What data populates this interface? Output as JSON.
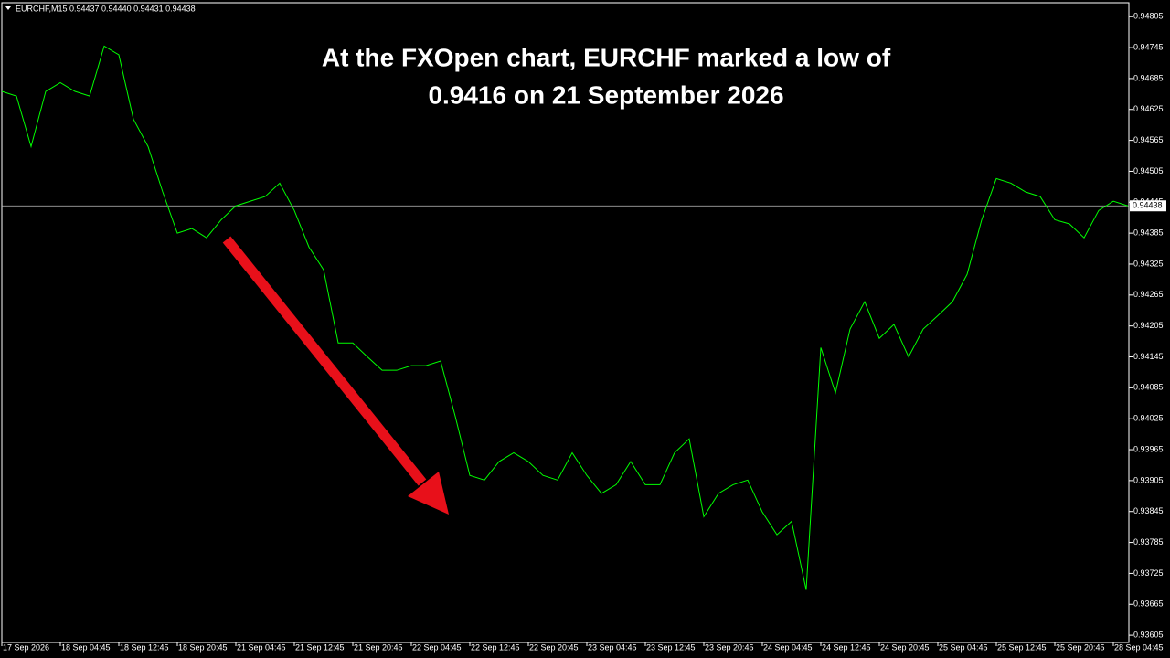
{
  "chart_data": {
    "type": "line",
    "header": "EURCHF,M15  0.94437 0.94440 0.94431 0.94438",
    "annotation": [
      "At the FXOpen chart, EURCHF marked a low of",
      "0.9416 on 21 September 2026"
    ],
    "categories": [
      "17 Sep 2026",
      null,
      null,
      null,
      "18 Sep 04:45",
      null,
      null,
      null,
      "18 Sep 12:45",
      null,
      null,
      null,
      "18 Sep 20:45",
      null,
      null,
      null,
      "21 Sep 04:45",
      null,
      null,
      null,
      "21 Sep 12:45",
      null,
      null,
      null,
      "21 Sep 20:45",
      null,
      null,
      null,
      "22 Sep 04:45",
      null,
      null,
      null,
      "22 Sep 12:45",
      null,
      null,
      null,
      "22 Sep 20:45",
      null,
      null,
      null,
      "23 Sep 04:45",
      null,
      null,
      null,
      "23 Sep 12:45",
      null,
      null,
      null,
      "23 Sep 20:45",
      null,
      null,
      null,
      "24 Sep 04:45",
      null,
      null,
      null,
      "24 Sep 12:45",
      null,
      null,
      null,
      "24 Sep 20:45",
      null,
      null,
      null,
      "25 Sep 04:45",
      null,
      null,
      null,
      "25 Sep 12:45",
      null,
      null,
      null,
      "25 Sep 20:45",
      null,
      null,
      null,
      "28 Sep 04:45",
      null
    ],
    "values": [
      0.9466,
      0.94651,
      0.94553,
      0.9466,
      0.94677,
      0.9466,
      0.94651,
      0.94748,
      0.94731,
      0.94606,
      0.94553,
      0.94465,
      0.94385,
      0.94394,
      0.94376,
      0.94411,
      0.94438,
      0.94447,
      0.94456,
      0.94482,
      0.94429,
      0.94358,
      0.94314,
      0.94172,
      0.94172,
      0.94145,
      0.94119,
      0.94119,
      0.94128,
      0.94128,
      0.94137,
      0.9403,
      0.93915,
      0.93906,
      0.93942,
      0.93959,
      0.93942,
      0.93915,
      0.93906,
      0.93959,
      0.93915,
      0.9388,
      0.93897,
      0.93942,
      0.93897,
      0.93897,
      0.93959,
      0.93986,
      0.93835,
      0.9388,
      0.93897,
      0.93906,
      0.93844,
      0.938,
      0.93826,
      0.93693,
      0.94163,
      0.94075,
      0.94199,
      0.94252,
      0.94181,
      0.94208,
      0.94145,
      0.94199,
      0.94225,
      0.94252,
      0.94305,
      0.94411,
      0.94491,
      0.94482,
      0.94465,
      0.94456,
      0.94411,
      0.94403,
      0.94376,
      0.94429,
      0.94447,
      0.94438
    ],
    "color": "#00ff00",
    "last_price": 0.94438,
    "ylim": [
      0.93591,
      0.94832
    ],
    "yticks": [
      0.94805,
      0.94745,
      0.94685,
      0.94625,
      0.94565,
      0.94505,
      0.94445,
      0.94385,
      0.94325,
      0.94265,
      0.94205,
      0.94145,
      0.94085,
      0.94025,
      0.93965,
      0.93905,
      0.93845,
      0.93785,
      0.93725,
      0.93665,
      0.93605
    ]
  }
}
